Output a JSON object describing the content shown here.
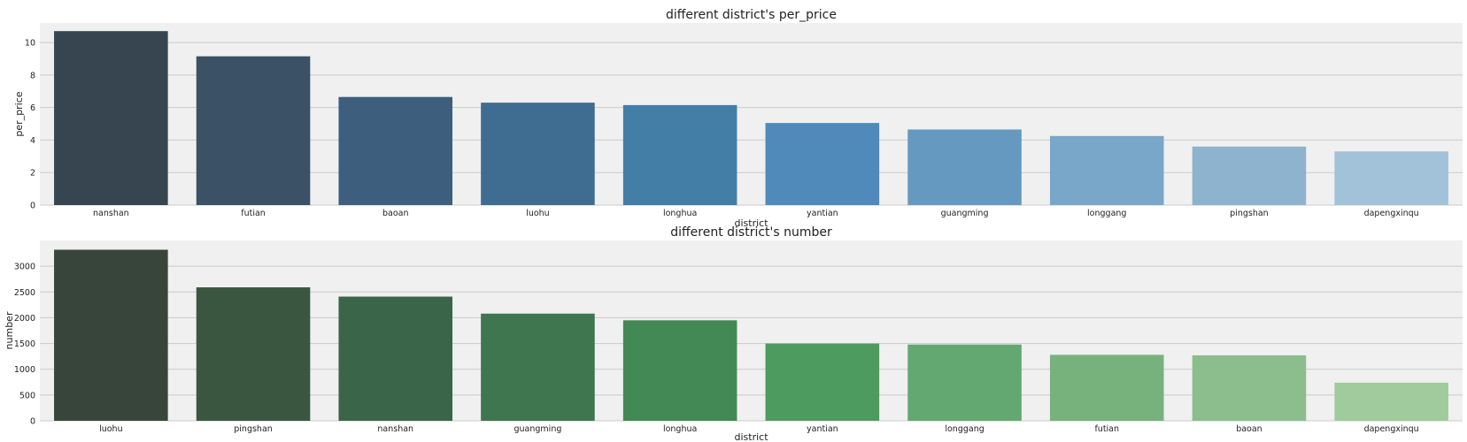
{
  "chart_data": [
    {
      "type": "bar",
      "title": "different district's per_price",
      "xlabel": "district",
      "ylabel": "per_price",
      "categories": [
        "nanshan",
        "futian",
        "baoan",
        "luohu",
        "longhua",
        "yantian",
        "guangming",
        "longgang",
        "pingshan",
        "dapengxinqu"
      ],
      "values": [
        10.7,
        9.15,
        6.65,
        6.3,
        6.15,
        5.05,
        4.65,
        4.25,
        3.6,
        3.3
      ],
      "ylim": [
        0,
        11.2
      ],
      "yticks": [
        0,
        2,
        4,
        6,
        8,
        10
      ],
      "grid": true,
      "colors": [
        "#36454f",
        "#3a5166",
        "#3d5f7d",
        "#3f6d92",
        "#427ea6",
        "#4f8abb",
        "#6699c0",
        "#78a7c9",
        "#8db3cf",
        "#a1c2d8"
      ]
    },
    {
      "type": "bar",
      "title": "different district's number",
      "xlabel": "district",
      "ylabel": "number",
      "categories": [
        "luohu",
        "pingshan",
        "nanshan",
        "guangming",
        "longhua",
        "yantian",
        "longgang",
        "futian",
        "baoan",
        "dapengxinqu"
      ],
      "values": [
        3320,
        2590,
        2410,
        2080,
        1950,
        1500,
        1480,
        1280,
        1270,
        740
      ],
      "ylim": [
        0,
        3500
      ],
      "yticks": [
        0,
        500,
        1000,
        1500,
        2000,
        2500,
        3000
      ],
      "grid": true,
      "colors": [
        "#37453a",
        "#3a5640",
        "#3b6548",
        "#3f754f",
        "#438955",
        "#4e9b5f",
        "#63a870",
        "#77b27d",
        "#8bbd8d",
        "#a0cb9d"
      ]
    }
  ]
}
